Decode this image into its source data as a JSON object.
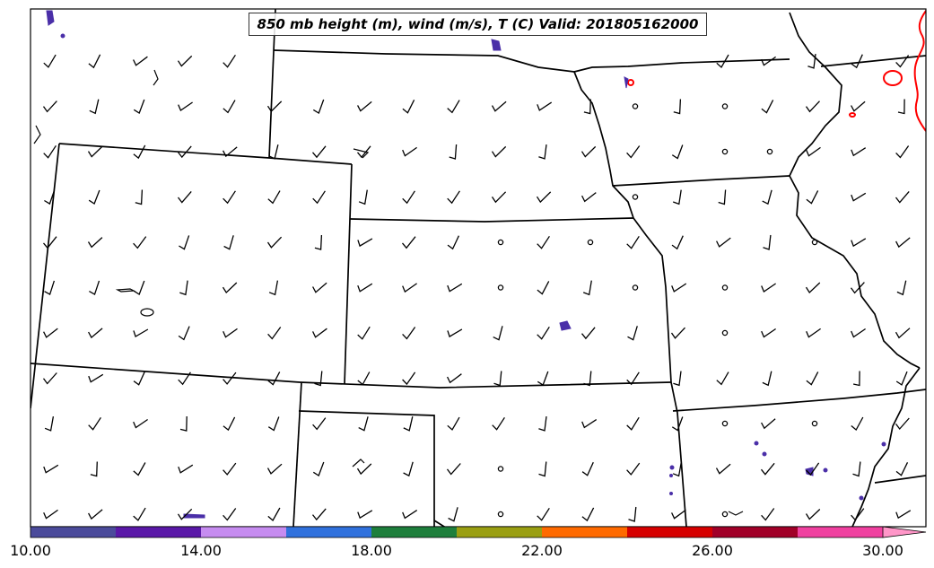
{
  "title": "850 mb height (m), wind (m/s), T (C) Valid: 201805162000",
  "colorbar": {
    "tick_labels": [
      "10.00",
      "14.00",
      "18.00",
      "22.00",
      "26.00",
      "30.00"
    ],
    "colors": [
      "#4b4b9b",
      "#5a18a8",
      "#c68cf0",
      "#3071dd",
      "#1e7f3c",
      "#9a9f12",
      "#ff6a00",
      "#d60000",
      "#a10028",
      "#f041a0",
      "#ff96c8"
    ]
  },
  "colors": {
    "boundaries": "#000000",
    "warm_contour": "#ff0000",
    "cool_patches": "#4a2fa8"
  }
}
